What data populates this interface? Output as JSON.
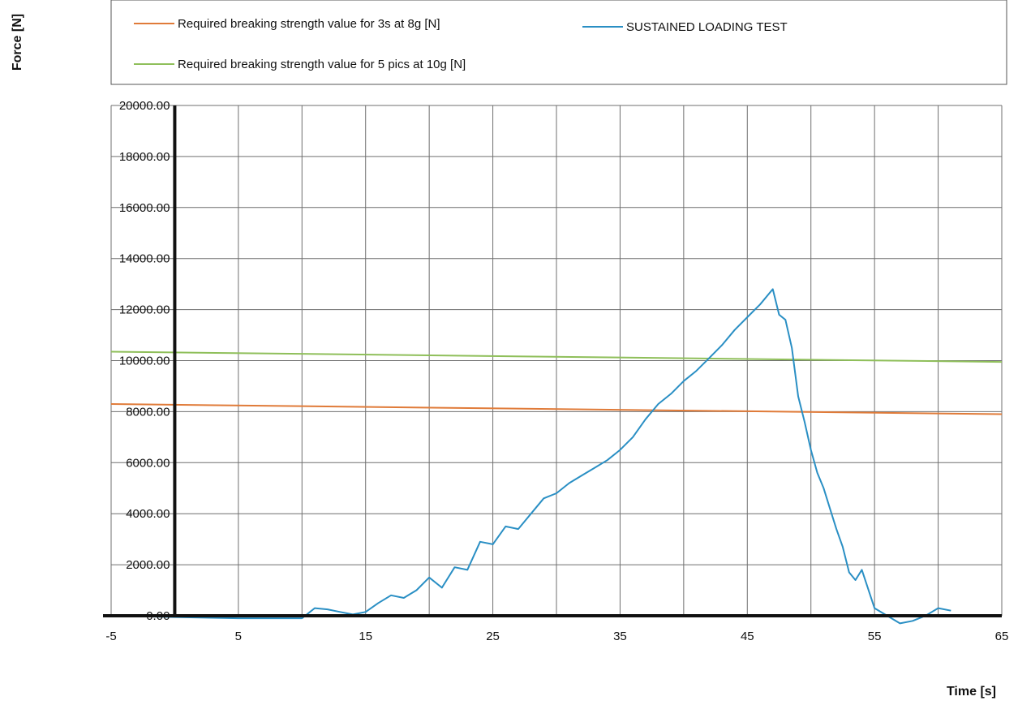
{
  "chart_data": {
    "type": "line",
    "title": "",
    "xlabel": "Time [s]",
    "ylabel": "Force [N]",
    "xlim": [
      -5,
      65
    ],
    "ylim": [
      0,
      20000
    ],
    "x_ticks": [
      -5,
      5,
      15,
      25,
      35,
      45,
      55,
      65
    ],
    "x_tick_labels": [
      "-5",
      "5",
      "15",
      "25",
      "35",
      "45",
      "55",
      "65"
    ],
    "y_ticks": [
      0,
      2000,
      4000,
      6000,
      8000,
      10000,
      12000,
      14000,
      16000,
      18000,
      20000
    ],
    "y_tick_labels": [
      "0.00",
      "2000.00",
      "4000.00",
      "6000.00",
      "8000.00",
      "10000.00",
      "12000.00",
      "14000.00",
      "16000.00",
      "18000.00",
      "20000.00"
    ],
    "grid": true,
    "legend_position": "top",
    "series": [
      {
        "name": "Required breaking strength value for 3s at 8g [N]",
        "color": "#e07b39",
        "x": [
          -5,
          65
        ],
        "y": [
          8300,
          7900
        ]
      },
      {
        "name": "Required breaking strength value for 5 pics at 10g [N]",
        "color": "#8fbf5a",
        "x": [
          -5,
          65
        ],
        "y": [
          10350,
          9950
        ]
      },
      {
        "name": "SUSTAINED LOADING TEST",
        "color": "#2a8fc4",
        "x": [
          -5,
          0,
          5,
          10,
          11,
          12,
          13,
          14,
          15,
          16,
          17,
          18,
          19,
          20,
          21,
          22,
          23,
          24,
          25,
          26,
          27,
          28,
          29,
          30,
          31,
          32,
          33,
          34,
          35,
          36,
          37,
          38,
          39,
          40,
          41,
          42,
          43,
          44,
          45,
          46,
          47,
          47.5,
          48,
          48.5,
          49,
          49.5,
          50,
          50.5,
          51,
          51.5,
          52,
          52.5,
          53,
          53.5,
          54,
          55,
          56,
          57,
          58,
          59,
          60,
          61
        ],
        "y": [
          0,
          -50,
          -100,
          -100,
          300,
          250,
          150,
          50,
          150,
          500,
          800,
          700,
          1000,
          1500,
          1100,
          1900,
          1800,
          2900,
          2800,
          3500,
          3400,
          4000,
          4600,
          4800,
          5200,
          5500,
          5800,
          6100,
          6500,
          7000,
          7700,
          8300,
          8700,
          9200,
          9600,
          10100,
          10600,
          11200,
          11700,
          12200,
          12800,
          11800,
          11600,
          10500,
          8600,
          7600,
          6500,
          5600,
          5000,
          4200,
          3400,
          2700,
          1700,
          1400,
          1800,
          300,
          0,
          -300,
          -200,
          0,
          300,
          200
        ]
      }
    ]
  }
}
